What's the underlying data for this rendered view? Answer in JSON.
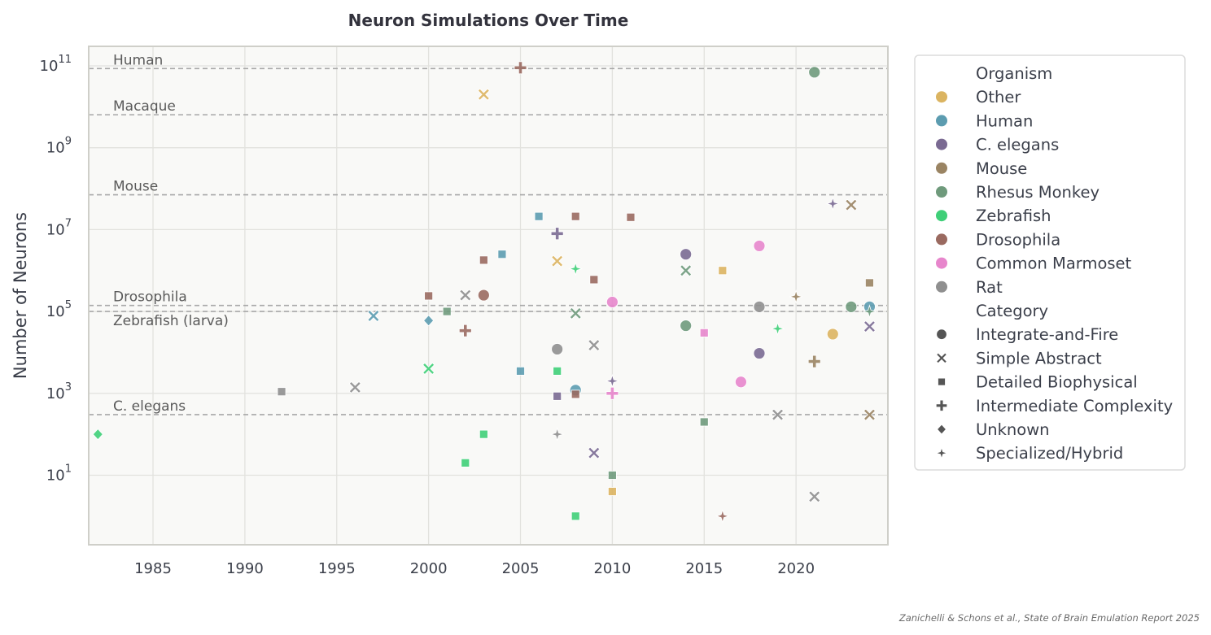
{
  "chart_data": {
    "type": "scatter",
    "title": "Neuron Simulations Over Time",
    "xlabel": "",
    "ylabel": "Number of Neurons",
    "xlim": [
      1981.5,
      2025.0
    ],
    "ylim": [
      0.2,
      300000000000.0
    ],
    "yscale": "log",
    "xticks": [
      1985,
      1990,
      1995,
      2000,
      2005,
      2010,
      2015,
      2020
    ],
    "yticks": [
      10,
      1000,
      100000,
      10000000,
      1000000000,
      100000000000
    ],
    "ytick_base": "10",
    "ytick_exponents": [
      "1",
      "3",
      "5",
      "7",
      "9",
      "11"
    ],
    "grid": true,
    "legend_position": "outside-right",
    "reference_lines": [
      {
        "label": "Human",
        "value": 86000000000
      },
      {
        "label": "Macaque",
        "value": 6400000000
      },
      {
        "label": "Mouse",
        "value": 71000000
      },
      {
        "label": "Drosophila",
        "value": 140000
      },
      {
        "label": "Zebrafish (larva)",
        "value": 100000
      },
      {
        "label": "C. elegans",
        "value": 302
      }
    ],
    "organisms": [
      {
        "name": "Other",
        "color": "#dbb461"
      },
      {
        "name": "Human",
        "color": "#5c9cb0"
      },
      {
        "name": "C. elegans",
        "color": "#7a6a92"
      },
      {
        "name": "Mouse",
        "color": "#9a8463"
      },
      {
        "name": "Rhesus Monkey",
        "color": "#6f9a7c"
      },
      {
        "name": "Zebrafish",
        "color": "#3fcf78"
      },
      {
        "name": "Drosophila",
        "color": "#9a6a60"
      },
      {
        "name": "Common Marmoset",
        "color": "#e786cc"
      },
      {
        "name": "Rat",
        "color": "#8f8f8f"
      }
    ],
    "categories": [
      {
        "name": "Integrate-and-Fire",
        "marker": "circle"
      },
      {
        "name": "Simple Abstract",
        "marker": "x"
      },
      {
        "name": "Detailed Biophysical",
        "marker": "square"
      },
      {
        "name": "Intermediate Complexity",
        "marker": "plus"
      },
      {
        "name": "Unknown",
        "marker": "diamond"
      },
      {
        "name": "Specialized/Hybrid",
        "marker": "star"
      }
    ],
    "legend": {
      "organism_title": "Organism",
      "category_title": "Category"
    },
    "points": [
      {
        "x": 1982,
        "y": 100,
        "organism": "Zebrafish",
        "category": "Unknown"
      },
      {
        "x": 1992,
        "y": 1100,
        "organism": "Rat",
        "category": "Detailed Biophysical"
      },
      {
        "x": 1996,
        "y": 1400,
        "organism": "Rat",
        "category": "Simple Abstract"
      },
      {
        "x": 1997,
        "y": 78000,
        "organism": "Human",
        "category": "Simple Abstract"
      },
      {
        "x": 2000,
        "y": 240000,
        "organism": "Drosophila",
        "category": "Detailed Biophysical"
      },
      {
        "x": 2000,
        "y": 60000,
        "organism": "Human",
        "category": "Unknown"
      },
      {
        "x": 2000,
        "y": 4000,
        "organism": "Zebrafish",
        "category": "Simple Abstract"
      },
      {
        "x": 2001,
        "y": 100000,
        "organism": "Rhesus Monkey",
        "category": "Detailed Biophysical"
      },
      {
        "x": 2002,
        "y": 250000,
        "organism": "Rat",
        "category": "Simple Abstract"
      },
      {
        "x": 2002,
        "y": 34000,
        "organism": "Drosophila",
        "category": "Intermediate Complexity"
      },
      {
        "x": 2002,
        "y": 20,
        "organism": "Zebrafish",
        "category": "Detailed Biophysical"
      },
      {
        "x": 2003,
        "y": 20000000000,
        "organism": "Other",
        "category": "Simple Abstract"
      },
      {
        "x": 2003,
        "y": 1800000,
        "organism": "Drosophila",
        "category": "Detailed Biophysical"
      },
      {
        "x": 2003,
        "y": 250000,
        "organism": "Drosophila",
        "category": "Integrate-and-Fire"
      },
      {
        "x": 2003,
        "y": 100,
        "organism": "Zebrafish",
        "category": "Detailed Biophysical"
      },
      {
        "x": 2004,
        "y": 2500000,
        "organism": "Human",
        "category": "Detailed Biophysical"
      },
      {
        "x": 2005,
        "y": 90000000000,
        "organism": "Drosophila",
        "category": "Intermediate Complexity"
      },
      {
        "x": 2005,
        "y": 3500,
        "organism": "Human",
        "category": "Detailed Biophysical"
      },
      {
        "x": 2006,
        "y": 21000000,
        "organism": "Human",
        "category": "Detailed Biophysical"
      },
      {
        "x": 2007,
        "y": 8000000,
        "organism": "C. elegans",
        "category": "Intermediate Complexity"
      },
      {
        "x": 2007,
        "y": 1700000,
        "organism": "Other",
        "category": "Simple Abstract"
      },
      {
        "x": 2007,
        "y": 12000,
        "organism": "Rat",
        "category": "Integrate-and-Fire"
      },
      {
        "x": 2007,
        "y": 3500,
        "organism": "Zebrafish",
        "category": "Detailed Biophysical"
      },
      {
        "x": 2007,
        "y": 850,
        "organism": "C. elegans",
        "category": "Detailed Biophysical"
      },
      {
        "x": 2007,
        "y": 100,
        "organism": "Rat",
        "category": "Specialized/Hybrid"
      },
      {
        "x": 2008,
        "y": 21000000,
        "organism": "Drosophila",
        "category": "Detailed Biophysical"
      },
      {
        "x": 2008,
        "y": 1100000,
        "organism": "Zebrafish",
        "category": "Specialized/Hybrid"
      },
      {
        "x": 2008,
        "y": 90000,
        "organism": "Rhesus Monkey",
        "category": "Simple Abstract"
      },
      {
        "x": 2008,
        "y": 1200,
        "organism": "Human",
        "category": "Integrate-and-Fire"
      },
      {
        "x": 2008,
        "y": 950,
        "organism": "Drosophila",
        "category": "Detailed Biophysical"
      },
      {
        "x": 2008,
        "y": 1,
        "organism": "Zebrafish",
        "category": "Detailed Biophysical"
      },
      {
        "x": 2009,
        "y": 600000,
        "organism": "Drosophila",
        "category": "Detailed Biophysical"
      },
      {
        "x": 2009,
        "y": 15000,
        "organism": "Rat",
        "category": "Simple Abstract"
      },
      {
        "x": 2009,
        "y": 35,
        "organism": "C. elegans",
        "category": "Simple Abstract"
      },
      {
        "x": 2010,
        "y": 170000,
        "organism": "Common Marmoset",
        "category": "Integrate-and-Fire"
      },
      {
        "x": 2010,
        "y": 2000,
        "organism": "C. elegans",
        "category": "Specialized/Hybrid"
      },
      {
        "x": 2010,
        "y": 1000,
        "organism": "Common Marmoset",
        "category": "Intermediate Complexity"
      },
      {
        "x": 2010,
        "y": 10,
        "organism": "Rhesus Monkey",
        "category": "Detailed Biophysical"
      },
      {
        "x": 2010,
        "y": 4,
        "organism": "Other",
        "category": "Detailed Biophysical"
      },
      {
        "x": 2011,
        "y": 20000000,
        "organism": "Drosophila",
        "category": "Detailed Biophysical"
      },
      {
        "x": 2014,
        "y": 2500000,
        "organism": "C. elegans",
        "category": "Integrate-and-Fire"
      },
      {
        "x": 2014,
        "y": 1000000,
        "organism": "Rhesus Monkey",
        "category": "Simple Abstract"
      },
      {
        "x": 2014,
        "y": 45000,
        "organism": "Rhesus Monkey",
        "category": "Integrate-and-Fire"
      },
      {
        "x": 2015,
        "y": 30000,
        "organism": "Common Marmoset",
        "category": "Detailed Biophysical"
      },
      {
        "x": 2015,
        "y": 200,
        "organism": "Rhesus Monkey",
        "category": "Detailed Biophysical"
      },
      {
        "x": 2016,
        "y": 1000000,
        "organism": "Other",
        "category": "Detailed Biophysical"
      },
      {
        "x": 2016,
        "y": 1,
        "organism": "Drosophila",
        "category": "Specialized/Hybrid"
      },
      {
        "x": 2017,
        "y": 1900,
        "organism": "Common Marmoset",
        "category": "Integrate-and-Fire"
      },
      {
        "x": 2018,
        "y": 4000000,
        "organism": "Common Marmoset",
        "category": "Integrate-and-Fire"
      },
      {
        "x": 2018,
        "y": 130000,
        "organism": "Rat",
        "category": "Integrate-and-Fire"
      },
      {
        "x": 2018,
        "y": 9500,
        "organism": "C. elegans",
        "category": "Integrate-and-Fire"
      },
      {
        "x": 2019,
        "y": 38000,
        "organism": "Zebrafish",
        "category": "Specialized/Hybrid"
      },
      {
        "x": 2019,
        "y": 300,
        "organism": "Rat",
        "category": "Simple Abstract"
      },
      {
        "x": 2020,
        "y": 230000,
        "organism": "Mouse",
        "category": "Specialized/Hybrid"
      },
      {
        "x": 2021,
        "y": 70000000000,
        "organism": "Rhesus Monkey",
        "category": "Integrate-and-Fire"
      },
      {
        "x": 2021,
        "y": 6000,
        "organism": "Mouse",
        "category": "Intermediate Complexity"
      },
      {
        "x": 2021,
        "y": 3,
        "organism": "Rat",
        "category": "Simple Abstract"
      },
      {
        "x": 2022,
        "y": 43000000,
        "organism": "C. elegans",
        "category": "Specialized/Hybrid"
      },
      {
        "x": 2022,
        "y": 28000,
        "organism": "Other",
        "category": "Integrate-and-Fire"
      },
      {
        "x": 2023,
        "y": 40000000,
        "organism": "Mouse",
        "category": "Simple Abstract"
      },
      {
        "x": 2023,
        "y": 130000,
        "organism": "Rhesus Monkey",
        "category": "Integrate-and-Fire"
      },
      {
        "x": 2024,
        "y": 500000,
        "organism": "Mouse",
        "category": "Detailed Biophysical"
      },
      {
        "x": 2024,
        "y": 130000,
        "organism": "Human",
        "category": "Integrate-and-Fire"
      },
      {
        "x": 2024,
        "y": 100000,
        "organism": "Rhesus Monkey",
        "category": "Specialized/Hybrid"
      },
      {
        "x": 2024,
        "y": 43000,
        "organism": "C. elegans",
        "category": "Simple Abstract"
      },
      {
        "x": 2024,
        "y": 300,
        "organism": "Mouse",
        "category": "Simple Abstract"
      }
    ]
  },
  "footer": {
    "credit": "Zanichelli & Schons et al., State of Brain Emulation Report 2025"
  }
}
